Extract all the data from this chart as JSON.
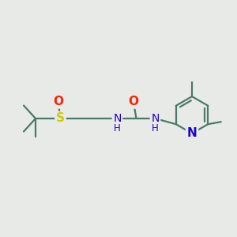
{
  "background_color": "#e8eae8",
  "bond_color": "#4a7a6a",
  "bond_width": 1.6,
  "S_color": "#cccc00",
  "O_color": "#ff2200",
  "N_color": "#2200cc",
  "figsize": [
    3.0,
    3.0
  ],
  "dpi": 100,
  "xlim": [
    0,
    10
  ],
  "ylim": [
    0,
    10
  ]
}
